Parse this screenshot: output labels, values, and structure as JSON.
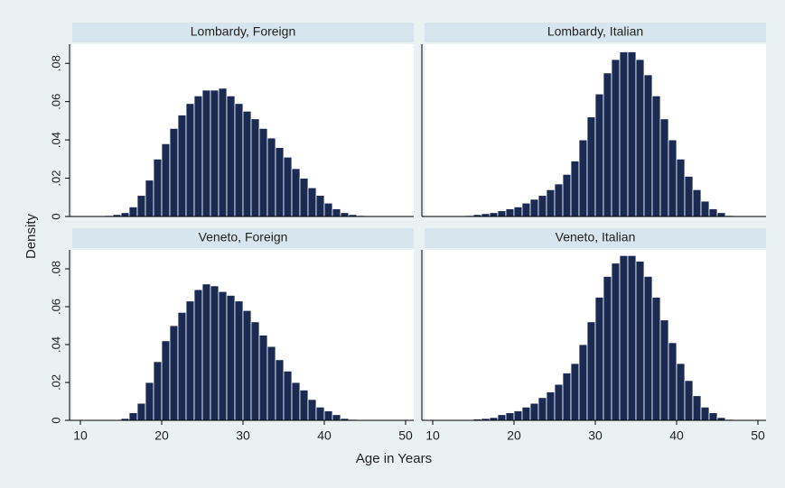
{
  "y_axis_label": "Density",
  "x_axis_label": "Age in Years",
  "chart_data": [
    {
      "type": "histogram",
      "title": "Lombardy, Foreign",
      "color": "#1a2a52",
      "bins": [
        10,
        11,
        12,
        13,
        14,
        15,
        16,
        17,
        18,
        19,
        20,
        21,
        22,
        23,
        24,
        25,
        26,
        27,
        28,
        29,
        30,
        31,
        32,
        33,
        34,
        35,
        36,
        37,
        38,
        39,
        40,
        41,
        42,
        43,
        44,
        45,
        46,
        47,
        48,
        49,
        50
      ],
      "values": [
        0,
        0,
        0.0003,
        0.0005,
        0.001,
        0.002,
        0.005,
        0.011,
        0.019,
        0.03,
        0.038,
        0.046,
        0.053,
        0.059,
        0.063,
        0.066,
        0.066,
        0.067,
        0.063,
        0.059,
        0.055,
        0.051,
        0.046,
        0.041,
        0.036,
        0.031,
        0.025,
        0.02,
        0.015,
        0.011,
        0.007,
        0.004,
        0.002,
        0.001,
        0.0005,
        0.0003,
        0.0002,
        0.0001,
        0,
        0
      ],
      "xlim": [
        9,
        51
      ],
      "ylim": [
        0,
        0.09
      ],
      "yticks": [
        0,
        {
          "value": 0.02,
          "label": ".02"
        },
        {
          "value": 0.04,
          "label": ".04"
        },
        {
          "value": 0.06,
          "label": ".06"
        },
        {
          "value": 0.08,
          "label": ".08"
        }
      ]
    },
    {
      "type": "histogram",
      "title": "Lombardy, Italian",
      "color": "#1a2a52",
      "bins": [
        10,
        11,
        12,
        13,
        14,
        15,
        16,
        17,
        18,
        19,
        20,
        21,
        22,
        23,
        24,
        25,
        26,
        27,
        28,
        29,
        30,
        31,
        32,
        33,
        34,
        35,
        36,
        37,
        38,
        39,
        40,
        41,
        42,
        43,
        44,
        45,
        46,
        47,
        48,
        49,
        50
      ],
      "values": [
        0,
        0,
        0.0002,
        0.0003,
        0.0005,
        0.001,
        0.0015,
        0.002,
        0.003,
        0.004,
        0.005,
        0.007,
        0.009,
        0.011,
        0.014,
        0.017,
        0.022,
        0.029,
        0.04,
        0.052,
        0.064,
        0.075,
        0.082,
        0.086,
        0.086,
        0.082,
        0.074,
        0.063,
        0.051,
        0.04,
        0.03,
        0.021,
        0.014,
        0.008,
        0.004,
        0.002,
        0.0005,
        0.0003,
        0.0001,
        0
      ],
      "xlim": [
        9,
        51
      ],
      "ylim": [
        0,
        0.09
      ]
    },
    {
      "type": "histogram",
      "title": "Veneto, Foreign",
      "color": "#1a2a52",
      "bins": [
        10,
        11,
        12,
        13,
        14,
        15,
        16,
        17,
        18,
        19,
        20,
        21,
        22,
        23,
        24,
        25,
        26,
        27,
        28,
        29,
        30,
        31,
        32,
        33,
        34,
        35,
        36,
        37,
        38,
        39,
        40,
        41,
        42,
        43,
        44,
        45,
        46,
        47,
        48,
        49,
        50
      ],
      "values": [
        0,
        0,
        0,
        0.0002,
        0.0004,
        0.001,
        0.004,
        0.009,
        0.02,
        0.031,
        0.042,
        0.05,
        0.057,
        0.063,
        0.069,
        0.072,
        0.071,
        0.068,
        0.066,
        0.063,
        0.058,
        0.052,
        0.045,
        0.039,
        0.032,
        0.026,
        0.02,
        0.016,
        0.011,
        0.007,
        0.005,
        0.003,
        0.001,
        0.0005,
        0.0002,
        0.0001,
        0,
        0,
        0,
        0
      ],
      "xlim": [
        9,
        51
      ],
      "ylim": [
        0,
        0.09
      ],
      "yticks": [
        0,
        {
          "value": 0.02,
          "label": ".02"
        },
        {
          "value": 0.04,
          "label": ".04"
        },
        {
          "value": 0.06,
          "label": ".06"
        },
        {
          "value": 0.08,
          "label": ".08"
        }
      ],
      "xticks": [
        10,
        20,
        30,
        40,
        50
      ]
    },
    {
      "type": "histogram",
      "title": "Veneto, Italian",
      "color": "#1a2a52",
      "bins": [
        10,
        11,
        12,
        13,
        14,
        15,
        16,
        17,
        18,
        19,
        20,
        21,
        22,
        23,
        24,
        25,
        26,
        27,
        28,
        29,
        30,
        31,
        32,
        33,
        34,
        35,
        36,
        37,
        38,
        39,
        40,
        41,
        42,
        43,
        44,
        45,
        46,
        47,
        48,
        49,
        50
      ],
      "values": [
        0,
        0,
        0,
        0.0002,
        0.0004,
        0.0007,
        0.001,
        0.0015,
        0.003,
        0.004,
        0.005,
        0.007,
        0.009,
        0.012,
        0.015,
        0.019,
        0.025,
        0.03,
        0.04,
        0.052,
        0.065,
        0.076,
        0.083,
        0.087,
        0.087,
        0.084,
        0.076,
        0.065,
        0.053,
        0.041,
        0.03,
        0.021,
        0.013,
        0.007,
        0.004,
        0.0015,
        0.0005,
        0.0002,
        0,
        0
      ],
      "xlim": [
        9,
        51
      ],
      "ylim": [
        0,
        0.09
      ],
      "xticks": [
        10,
        20,
        30,
        40,
        50
      ]
    }
  ]
}
